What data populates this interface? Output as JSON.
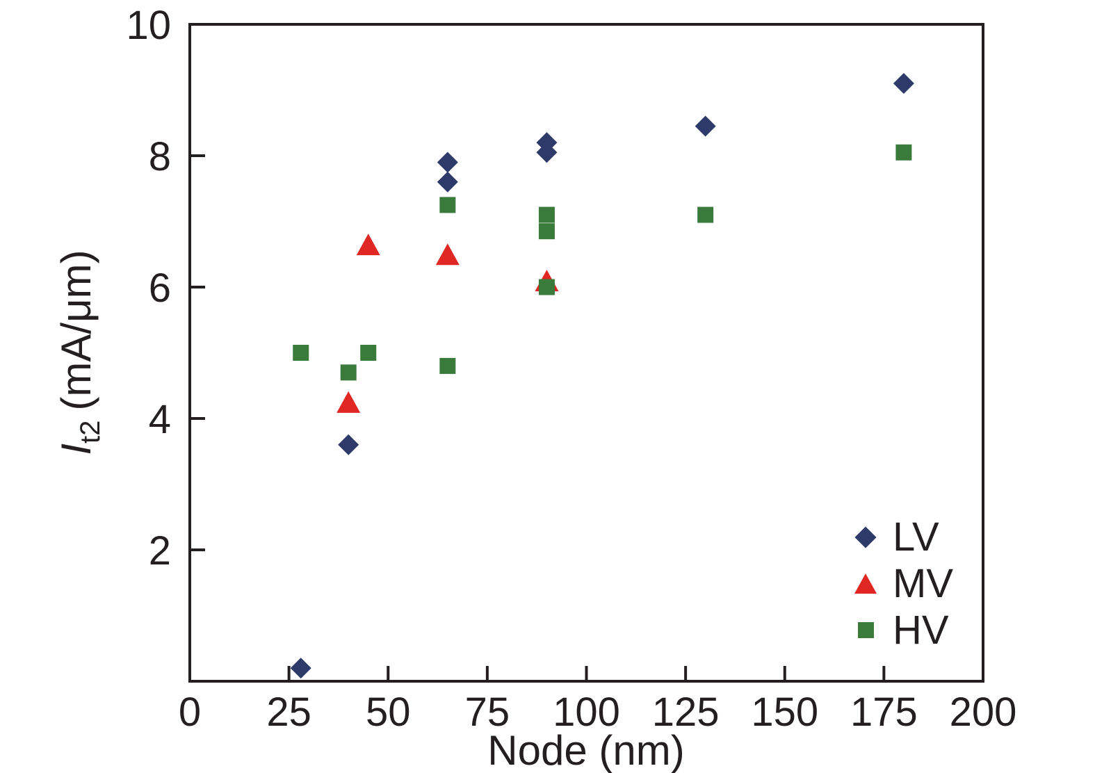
{
  "figure": {
    "background": "#ffffff",
    "ink": "#231f20"
  },
  "chart_data": {
    "type": "scatter",
    "title": "",
    "xlabel": "Node (nm)",
    "ylabel": {
      "symbol": "I",
      "subscript": "t2",
      "units": "(mA/μm)"
    },
    "xlim": [
      0,
      200
    ],
    "ylim": [
      0,
      10
    ],
    "xticks": [
      0,
      25,
      50,
      75,
      100,
      125,
      150,
      175,
      200
    ],
    "yticks": [
      2,
      4,
      6,
      8,
      10
    ],
    "grid": false,
    "legend_position": "lower right",
    "series": [
      {
        "name": "LV",
        "marker": "diamond",
        "color": "#2e3a6a",
        "points": [
          [
            28,
            0.2
          ],
          [
            40,
            3.6
          ],
          [
            65,
            7.6
          ],
          [
            65,
            7.9
          ],
          [
            90,
            8.05
          ],
          [
            90,
            8.2
          ],
          [
            130,
            8.45
          ],
          [
            180,
            9.1
          ]
        ]
      },
      {
        "name": "MV",
        "marker": "triangle",
        "color": "#e02723",
        "points": [
          [
            40,
            4.25
          ],
          [
            45,
            6.65
          ],
          [
            65,
            6.5
          ],
          [
            90,
            6.1
          ]
        ]
      },
      {
        "name": "HV",
        "marker": "square",
        "color": "#3a7b3c",
        "points": [
          [
            28,
            5.0
          ],
          [
            40,
            4.7
          ],
          [
            45,
            5.0
          ],
          [
            65,
            4.8
          ],
          [
            65,
            7.25
          ],
          [
            90,
            6.0
          ],
          [
            90,
            6.85
          ],
          [
            90,
            7.1
          ],
          [
            130,
            7.1
          ],
          [
            180,
            8.05
          ]
        ]
      }
    ]
  }
}
